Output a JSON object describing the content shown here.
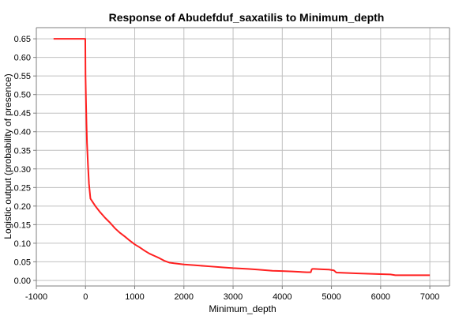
{
  "chart_data": {
    "type": "line",
    "title": "Response of Abudefduf_saxatilis to Minimum_depth",
    "xlabel": "Minimum_depth",
    "ylabel": "Logistic output (probability of presence)",
    "xlim": [
      -1000,
      7400
    ],
    "ylim": [
      -0.015,
      0.68
    ],
    "xticks": [
      "-1000",
      "0",
      "1000",
      "2000",
      "3000",
      "4000",
      "5000",
      "6000",
      "7000"
    ],
    "yticks": [
      "0.00",
      "0.05",
      "0.10",
      "0.15",
      "0.20",
      "0.25",
      "0.30",
      "0.35",
      "0.40",
      "0.45",
      "0.50",
      "0.55",
      "0.60",
      "0.65"
    ],
    "grid": true,
    "line_color": "#ff2020",
    "series": [
      {
        "x": [
          -650,
          -5,
          0,
          10,
          20,
          30,
          50,
          70,
          100,
          150,
          200,
          300,
          400,
          500,
          600,
          700,
          800,
          900,
          1000,
          1100,
          1200,
          1300,
          1400,
          1500,
          1600,
          1700,
          1800,
          2000,
          2200,
          2500,
          2800,
          3000,
          3300,
          3500,
          3800,
          4000,
          4200,
          4500,
          4580,
          4600,
          4620,
          4650,
          4800,
          4950,
          5050,
          5100,
          5300,
          5500,
          6000,
          6200,
          6300,
          7000
        ],
        "y": [
          0.65,
          0.65,
          0.55,
          0.48,
          0.42,
          0.37,
          0.31,
          0.26,
          0.22,
          0.21,
          0.2,
          0.183,
          0.168,
          0.155,
          0.14,
          0.128,
          0.118,
          0.107,
          0.097,
          0.089,
          0.08,
          0.072,
          0.066,
          0.06,
          0.053,
          0.048,
          0.046,
          0.043,
          0.041,
          0.038,
          0.035,
          0.033,
          0.031,
          0.029,
          0.026,
          0.025,
          0.024,
          0.022,
          0.022,
          0.03,
          0.031,
          0.031,
          0.03,
          0.029,
          0.027,
          0.021,
          0.02,
          0.019,
          0.017,
          0.016,
          0.014,
          0.014
        ]
      }
    ]
  }
}
